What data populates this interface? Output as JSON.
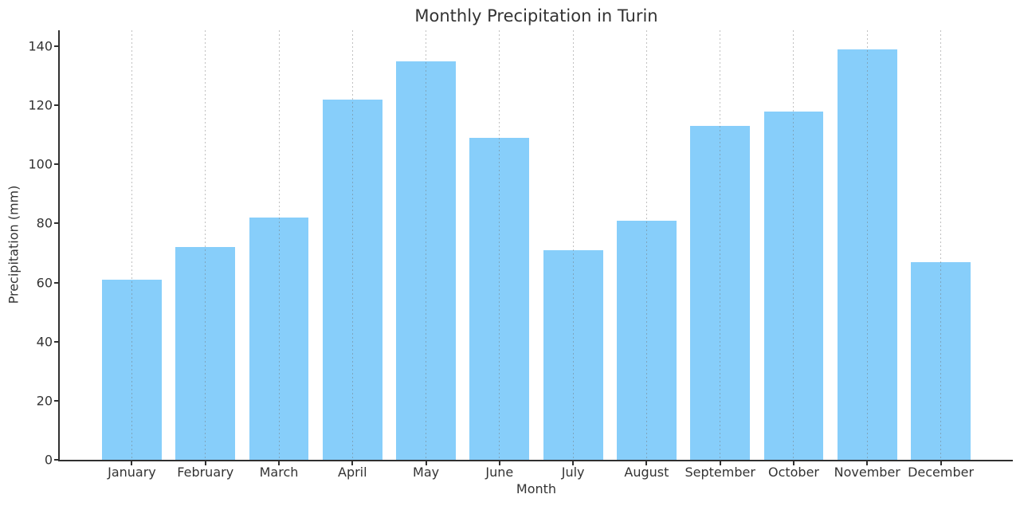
{
  "chart_data": {
    "type": "bar",
    "title": "Monthly Precipitation in Turin",
    "xlabel": "Month",
    "ylabel": "Precipitation (mm)",
    "categories": [
      "January",
      "February",
      "March",
      "April",
      "May",
      "June",
      "July",
      "August",
      "September",
      "October",
      "November",
      "December"
    ],
    "values": [
      61,
      72,
      82,
      122,
      135,
      109,
      71,
      81,
      113,
      118,
      139,
      67
    ],
    "yticks": [
      0,
      20,
      40,
      60,
      80,
      100,
      120,
      140
    ],
    "ylim": [
      0,
      145.4
    ],
    "xlim": [
      -0.98,
      11.98
    ],
    "bar_width_units": 0.81,
    "grid": "vertical-dashed",
    "legend": "none",
    "colors": {
      "bar": "#87CEFA",
      "spine": "#303030",
      "text": "#333333",
      "grid": "rgba(115,115,115,0.45)",
      "background": "#ffffff"
    }
  }
}
